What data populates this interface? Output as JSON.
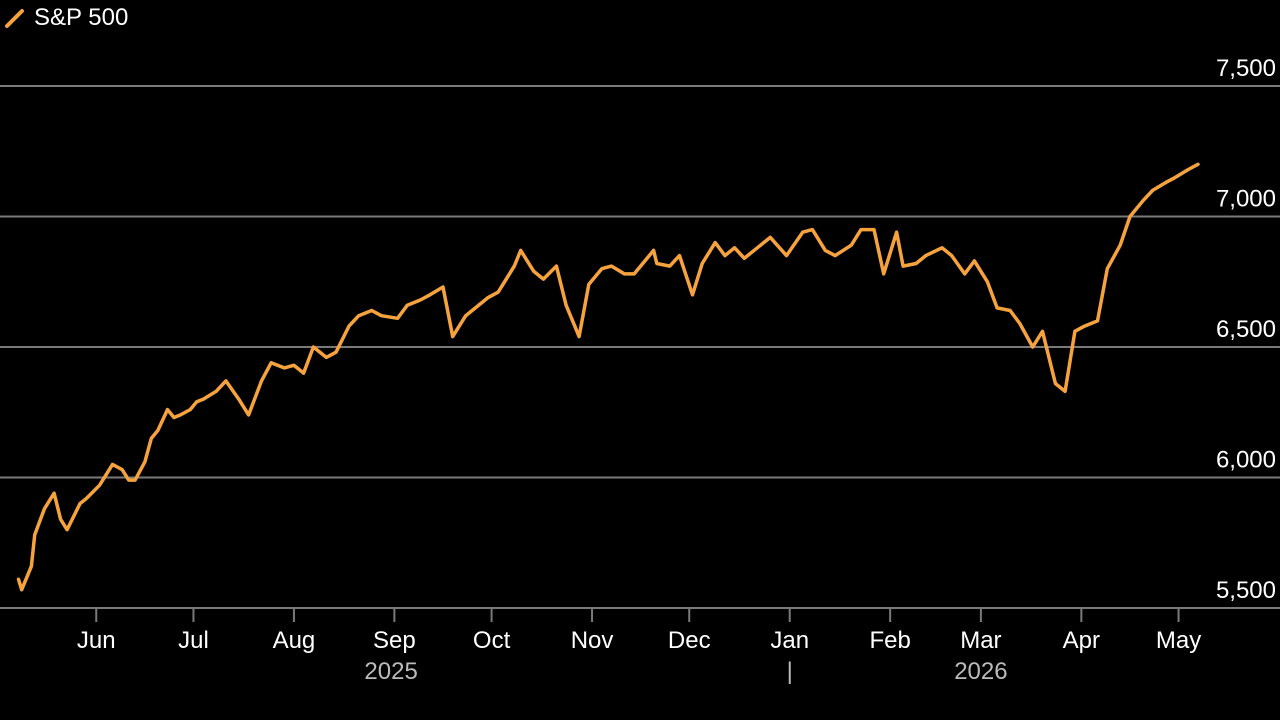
{
  "legend": {
    "label": "S&P 500"
  },
  "colors": {
    "line": "#f7a33d",
    "grid": "#7a7a7a",
    "text": "#ffffff",
    "year_text": "#bbbbbb",
    "background": "#000000"
  },
  "chart_data": {
    "type": "line",
    "title": "",
    "xlabel": "",
    "ylabel": "",
    "ylim": [
      5500,
      7500
    ],
    "y_ticks": [
      "5,500",
      "6,000",
      "6,500",
      "7,000",
      "7,500"
    ],
    "y_tick_values": [
      5500,
      6000,
      6500,
      7000,
      7500
    ],
    "x_ticks": [
      "Jun",
      "Jul",
      "Aug",
      "Sep",
      "Oct",
      "Nov",
      "Dec",
      "Jan",
      "Feb",
      "Mar",
      "Apr",
      "May"
    ],
    "x_tick_dates": [
      "2025-06-01",
      "2025-07-01",
      "2025-08-01",
      "2025-09-01",
      "2025-10-01",
      "2025-11-01",
      "2025-12-01",
      "2026-01-01",
      "2026-02-01",
      "2026-03-01",
      "2026-04-01",
      "2026-05-01"
    ],
    "year_labels": [
      {
        "text": "2025",
        "center_date": "2025-08-31"
      },
      {
        "text": "2026",
        "center_date": "2026-03-01"
      }
    ],
    "year_separator": {
      "text": "|",
      "date": "2026-01-01"
    },
    "x_range": [
      "2025-05-06",
      "2026-05-07"
    ],
    "grid": true,
    "legend_position": "top-left",
    "series": [
      {
        "name": "S&P 500",
        "x": [
          "2025-05-08",
          "2025-05-09",
          "2025-05-12",
          "2025-05-13",
          "2025-05-16",
          "2025-05-19",
          "2025-05-21",
          "2025-05-23",
          "2025-05-27",
          "2025-05-29",
          "2025-06-02",
          "2025-06-04",
          "2025-06-06",
          "2025-06-09",
          "2025-06-11",
          "2025-06-13",
          "2025-06-16",
          "2025-06-18",
          "2025-06-20",
          "2025-06-23",
          "2025-06-25",
          "2025-06-27",
          "2025-06-30",
          "2025-07-02",
          "2025-07-04",
          "2025-07-08",
          "2025-07-11",
          "2025-07-15",
          "2025-07-18",
          "2025-07-22",
          "2025-07-25",
          "2025-07-29",
          "2025-08-01",
          "2025-08-04",
          "2025-08-07",
          "2025-08-11",
          "2025-08-14",
          "2025-08-18",
          "2025-08-21",
          "2025-08-25",
          "2025-08-28",
          "2025-09-02",
          "2025-09-05",
          "2025-09-09",
          "2025-09-12",
          "2025-09-16",
          "2025-09-19",
          "2025-09-23",
          "2025-09-26",
          "2025-09-30",
          "2025-10-03",
          "2025-10-08",
          "2025-10-10",
          "2025-10-14",
          "2025-10-17",
          "2025-10-21",
          "2025-10-24",
          "2025-10-28",
          "2025-10-31",
          "2025-11-04",
          "2025-11-07",
          "2025-11-11",
          "2025-11-14",
          "2025-11-18",
          "2025-11-20",
          "2025-11-21",
          "2025-11-25",
          "2025-11-28",
          "2025-12-02",
          "2025-12-05",
          "2025-12-09",
          "2025-12-12",
          "2025-12-15",
          "2025-12-18",
          "2025-12-22",
          "2025-12-26",
          "2025-12-31",
          "2026-01-05",
          "2026-01-08",
          "2026-01-12",
          "2026-01-15",
          "2026-01-20",
          "2026-01-23",
          "2026-01-27",
          "2026-01-30",
          "2026-02-03",
          "2026-02-05",
          "2026-02-09",
          "2026-02-12",
          "2026-02-17",
          "2026-02-20",
          "2026-02-24",
          "2026-02-27",
          "2026-03-03",
          "2026-03-06",
          "2026-03-10",
          "2026-03-13",
          "2026-03-17",
          "2026-03-20",
          "2026-03-24",
          "2026-03-27",
          "2026-03-30",
          "2026-04-02",
          "2026-04-06",
          "2026-04-09",
          "2026-04-13",
          "2026-04-16",
          "2026-04-20",
          "2026-04-23",
          "2026-04-27",
          "2026-04-30",
          "2026-05-04",
          "2026-05-07"
        ],
        "y": [
          5610,
          5570,
          5660,
          5780,
          5880,
          5940,
          5840,
          5800,
          5900,
          5920,
          5970,
          6010,
          6050,
          6030,
          5990,
          5990,
          6060,
          6150,
          6180,
          6260,
          6230,
          6240,
          6260,
          6290,
          6300,
          6330,
          6370,
          6300,
          6240,
          6370,
          6440,
          6420,
          6430,
          6400,
          6500,
          6460,
          6480,
          6580,
          6620,
          6640,
          6620,
          6610,
          6660,
          6680,
          6700,
          6730,
          6540,
          6620,
          6650,
          6690,
          6710,
          6810,
          6870,
          6790,
          6760,
          6810,
          6660,
          6540,
          6740,
          6800,
          6810,
          6780,
          6780,
          6840,
          6870,
          6820,
          6810,
          6850,
          6700,
          6820,
          6900,
          6850,
          6880,
          6840,
          6880,
          6920,
          6850,
          6940,
          6950,
          6870,
          6850,
          6890,
          6950,
          6950,
          6780,
          6940,
          6810,
          6820,
          6850,
          6880,
          6850,
          6780,
          6830,
          6750,
          6650,
          6640,
          6590,
          6500,
          6560,
          6360,
          6330,
          6560,
          6580,
          6600,
          6800,
          6890,
          7000,
          7060,
          7100,
          7130,
          7150,
          7180,
          7200
        ]
      }
    ]
  }
}
